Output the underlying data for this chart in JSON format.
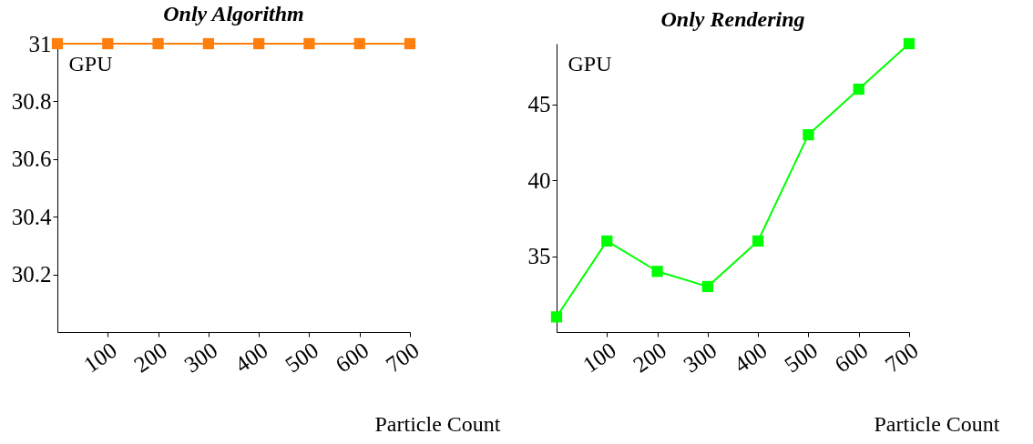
{
  "chart_data": [
    {
      "type": "line",
      "title": "Only Algorithm",
      "xlabel": "Particle Count",
      "ylabel": "GPU",
      "x": [
        0,
        100,
        200,
        300,
        400,
        500,
        600,
        700
      ],
      "series": [
        {
          "color": "#ff7f0e",
          "values": [
            31,
            31,
            31,
            31,
            31,
            31,
            31,
            31
          ]
        }
      ],
      "xlim": [
        0,
        700
      ],
      "ylim": [
        30,
        31
      ],
      "xticks": [
        100,
        200,
        300,
        400,
        500,
        600,
        700
      ],
      "yticks": [
        30.2,
        30.4,
        30.6,
        30.8,
        31
      ],
      "marker": "square",
      "line_style": "solid",
      "grid": false
    },
    {
      "type": "line",
      "title": "Only Rendering",
      "xlabel": "Particle Count",
      "ylabel": "GPU",
      "x": [
        0,
        100,
        200,
        300,
        400,
        500,
        600,
        700
      ],
      "series": [
        {
          "color": "#00ff00",
          "values": [
            31,
            36,
            34,
            33,
            36,
            43,
            46,
            49
          ]
        }
      ],
      "xlim": [
        0,
        700
      ],
      "ylim": [
        30,
        49
      ],
      "xticks": [
        100,
        200,
        300,
        400,
        500,
        600,
        700
      ],
      "yticks": [
        35,
        40,
        45
      ],
      "marker": "square",
      "line_style": "solid",
      "grid": false
    }
  ]
}
